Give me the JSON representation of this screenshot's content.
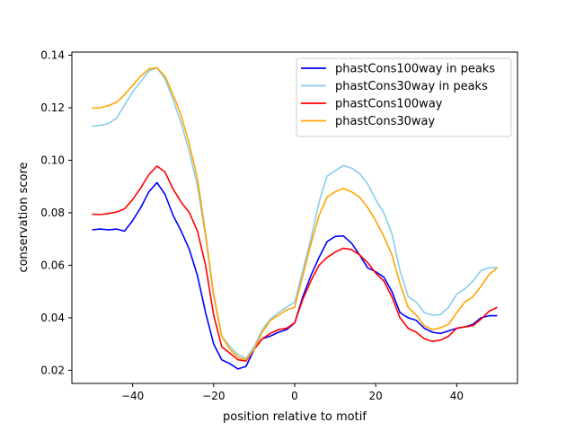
{
  "chart_data": {
    "type": "line",
    "title": "",
    "xlabel": "position relative to motif",
    "ylabel": "conservation score",
    "xlim": [
      -55,
      55
    ],
    "ylim": [
      0.015,
      0.1412
    ],
    "xticks": [
      -40,
      -20,
      0,
      20,
      40
    ],
    "xtick_labels": [
      "−40",
      "−20",
      "0",
      "20",
      "40"
    ],
    "yticks": [
      0.02,
      0.04,
      0.06,
      0.08,
      0.1,
      0.12,
      0.14
    ],
    "ytick_labels": [
      "0.02",
      "0.04",
      "0.06",
      "0.08",
      "0.10",
      "0.12",
      "0.14"
    ],
    "grid": false,
    "legend_position": "top-right",
    "x": [
      -50,
      -48,
      -46,
      -44,
      -42,
      -40,
      -38,
      -36,
      -34,
      -32,
      -30,
      -28,
      -26,
      -24,
      -22,
      -20,
      -18,
      -16,
      -14,
      -12,
      -10,
      -8,
      -6,
      -4,
      -2,
      0,
      2,
      4,
      6,
      8,
      10,
      12,
      14,
      16,
      18,
      20,
      22,
      24,
      26,
      28,
      30,
      32,
      34,
      36,
      38,
      40,
      42,
      44,
      46,
      48,
      50
    ],
    "series": [
      {
        "name": "phastCons100way in peaks",
        "color": "#0000ff",
        "values": [
          0.0735,
          0.0738,
          0.0735,
          0.0738,
          0.073,
          0.077,
          0.082,
          0.088,
          0.0915,
          0.087,
          0.079,
          0.073,
          0.066,
          0.056,
          0.042,
          0.03,
          0.024,
          0.0225,
          0.0205,
          0.0215,
          0.028,
          0.032,
          0.033,
          0.0345,
          0.0355,
          0.038,
          0.048,
          0.056,
          0.063,
          0.069,
          0.071,
          0.0712,
          0.0685,
          0.064,
          0.059,
          0.0575,
          0.0555,
          0.05,
          0.042,
          0.04,
          0.039,
          0.036,
          0.0345,
          0.034,
          0.035,
          0.036,
          0.0365,
          0.0375,
          0.04,
          0.0408,
          0.0408
        ]
      },
      {
        "name": "phastCons30way in peaks",
        "color": "#87ceeb",
        "values": [
          0.113,
          0.1133,
          0.114,
          0.116,
          0.121,
          0.126,
          0.13,
          0.134,
          0.1352,
          0.131,
          0.123,
          0.114,
          0.103,
          0.09,
          0.071,
          0.048,
          0.033,
          0.029,
          0.026,
          0.0245,
          0.029,
          0.0355,
          0.0395,
          0.042,
          0.044,
          0.046,
          0.058,
          0.07,
          0.084,
          0.094,
          0.096,
          0.098,
          0.097,
          0.095,
          0.091,
          0.085,
          0.08,
          0.072,
          0.058,
          0.048,
          0.046,
          0.042,
          0.041,
          0.0412,
          0.044,
          0.049,
          0.051,
          0.054,
          0.058,
          0.059,
          0.0592
        ]
      },
      {
        "name": "phastCons100way",
        "color": "#ff0000",
        "values": [
          0.0795,
          0.0793,
          0.0797,
          0.0803,
          0.0815,
          0.085,
          0.0895,
          0.0945,
          0.0978,
          0.0955,
          0.089,
          0.084,
          0.08,
          0.073,
          0.06,
          0.041,
          0.029,
          0.0265,
          0.024,
          0.0235,
          0.028,
          0.032,
          0.034,
          0.0355,
          0.036,
          0.038,
          0.047,
          0.054,
          0.06,
          0.063,
          0.065,
          0.0665,
          0.066,
          0.064,
          0.061,
          0.057,
          0.054,
          0.048,
          0.04,
          0.036,
          0.0345,
          0.032,
          0.031,
          0.0315,
          0.033,
          0.036,
          0.0365,
          0.037,
          0.0395,
          0.0425,
          0.044
        ]
      },
      {
        "name": "phastCons30way",
        "color": "#ffa500",
        "values": [
          0.1198,
          0.12,
          0.1208,
          0.122,
          0.125,
          0.1285,
          0.132,
          0.1348,
          0.1352,
          0.132,
          0.125,
          0.117,
          0.106,
          0.093,
          0.072,
          0.049,
          0.033,
          0.028,
          0.025,
          0.024,
          0.028,
          0.0345,
          0.039,
          0.041,
          0.043,
          0.044,
          0.056,
          0.068,
          0.079,
          0.086,
          0.088,
          0.0892,
          0.088,
          0.086,
          0.082,
          0.077,
          0.071,
          0.064,
          0.053,
          0.044,
          0.041,
          0.037,
          0.0355,
          0.0362,
          0.0375,
          0.042,
          0.046,
          0.048,
          0.052,
          0.0565,
          0.059
        ]
      }
    ]
  }
}
